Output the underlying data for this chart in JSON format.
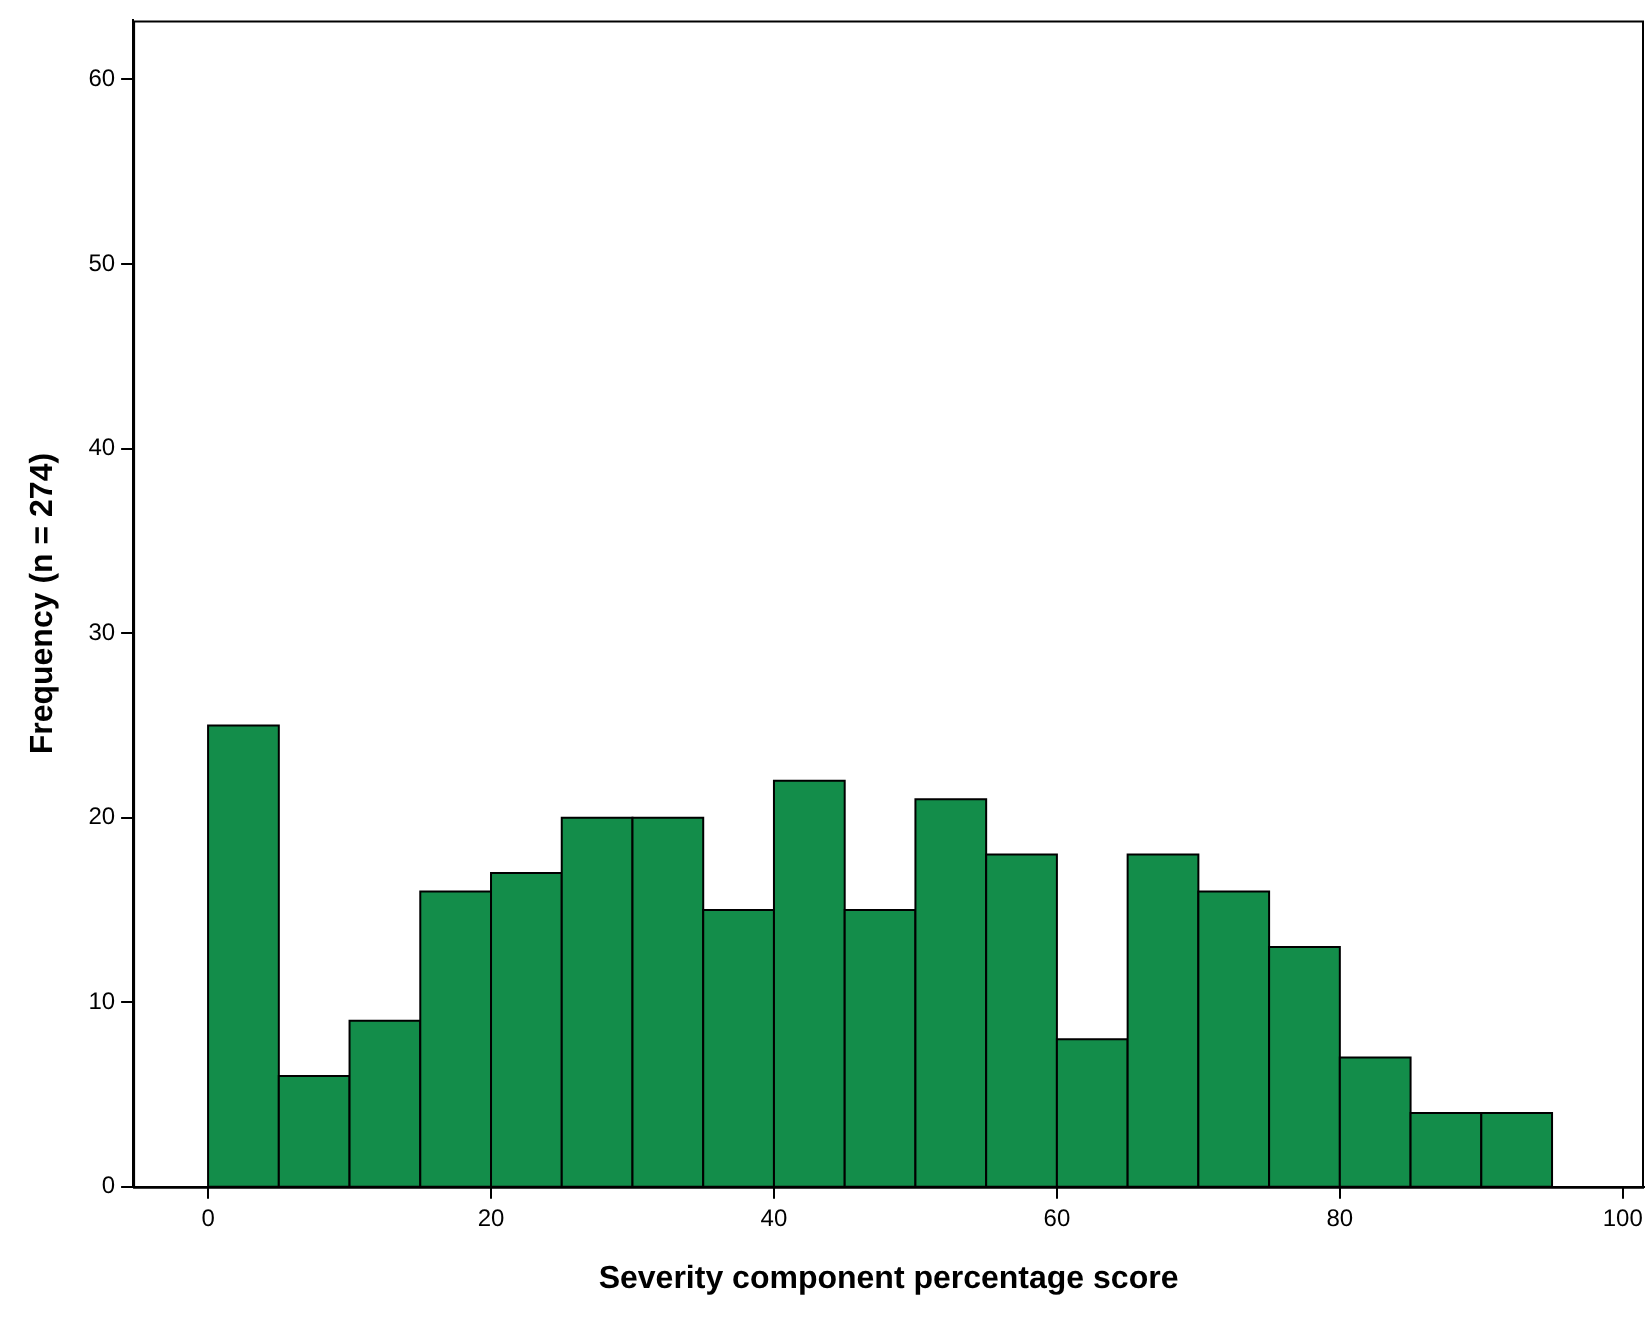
{
  "chart_data": {
    "type": "histogram",
    "xlabel": "Severity component percentage score",
    "ylabel": "Frequency (n = 274)",
    "bins": [
      0,
      5,
      10,
      15,
      20,
      25,
      30,
      35,
      40,
      45,
      50,
      55,
      60,
      65,
      70,
      75,
      80,
      85,
      90,
      95
    ],
    "values": [
      25,
      6,
      9,
      16,
      17,
      20,
      20,
      15,
      22,
      15,
      21,
      18,
      8,
      18,
      16,
      13,
      7,
      4,
      4
    ],
    "color": "#138d4a",
    "xlim": [
      -5.3,
      101.5
    ],
    "xticks": [
      0,
      20,
      40,
      60,
      80,
      100
    ],
    "ylim": [
      0,
      63.2
    ],
    "yticks": [
      0,
      10,
      20,
      30,
      40,
      50,
      60
    ],
    "grid": false,
    "legend": false
  }
}
